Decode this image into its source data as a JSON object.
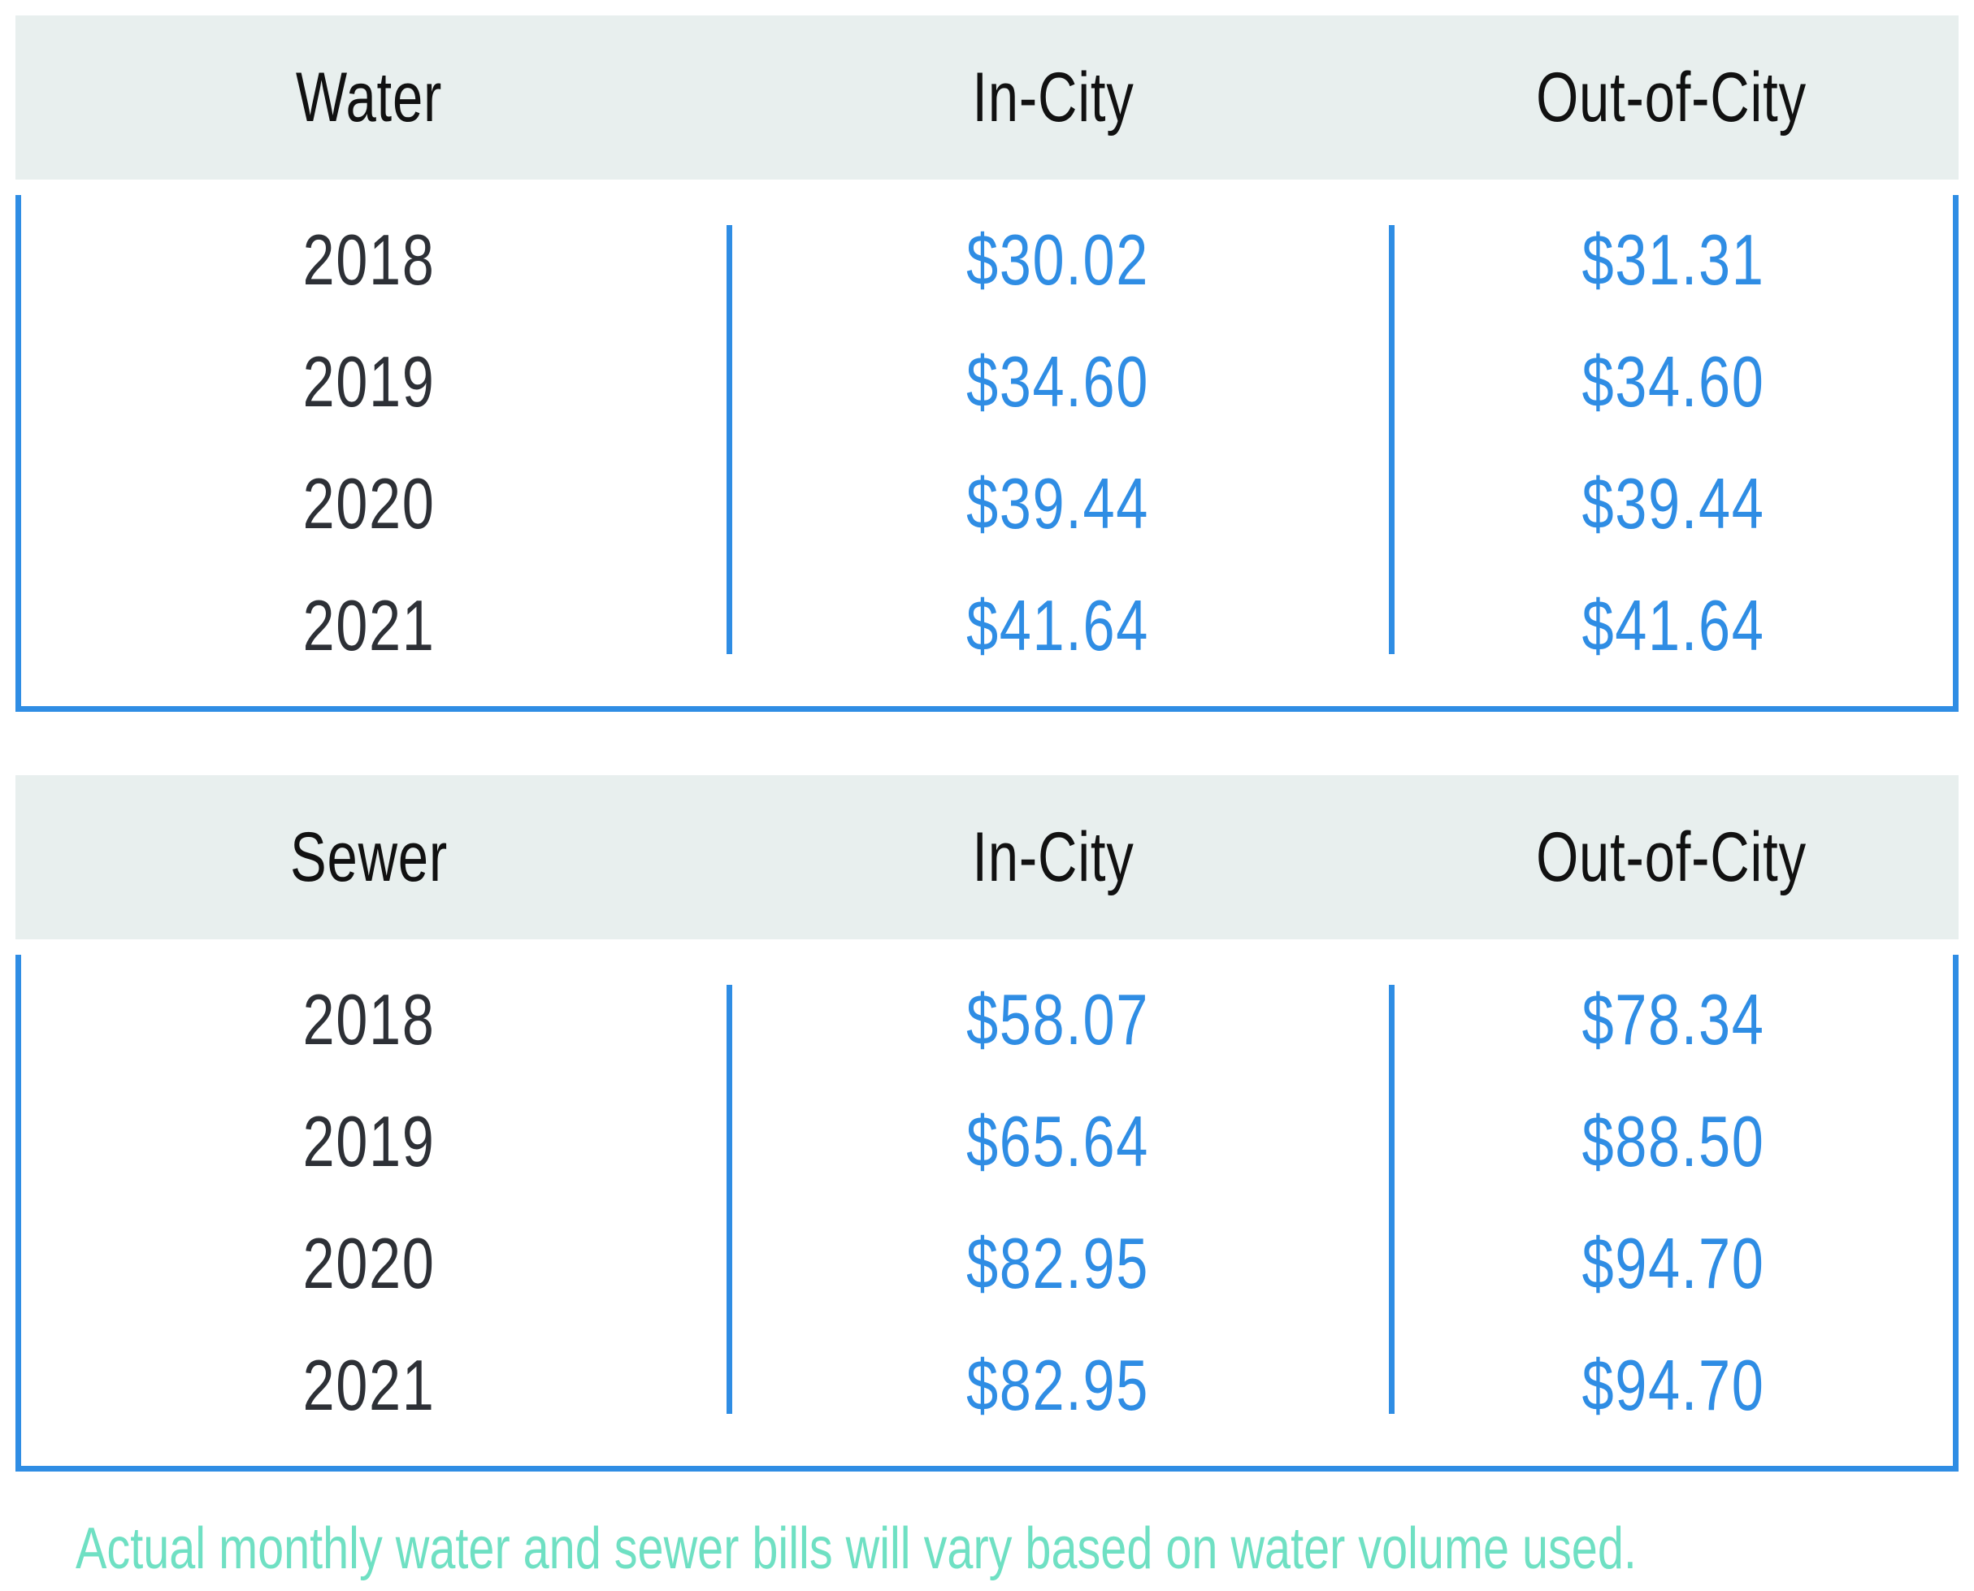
{
  "chart_data": [
    {
      "type": "table",
      "columns": [
        "Water",
        "In-City",
        "Out-of-City"
      ],
      "rows": [
        {
          "year": "2018",
          "in_city": "$30.02",
          "out_of_city": "$31.31"
        },
        {
          "year": "2019",
          "in_city": "$34.60",
          "out_of_city": "$34.60"
        },
        {
          "year": "2020",
          "in_city": "$39.44",
          "out_of_city": "$39.44"
        },
        {
          "year": "2021",
          "in_city": "$41.64",
          "out_of_city": "$41.64"
        }
      ]
    },
    {
      "type": "table",
      "columns": [
        "Sewer",
        "In-City",
        "Out-of-City"
      ],
      "rows": [
        {
          "year": "2018",
          "in_city": "$58.07",
          "out_of_city": "$78.34"
        },
        {
          "year": "2019",
          "in_city": "$65.64",
          "out_of_city": "$88.50"
        },
        {
          "year": "2020",
          "in_city": "$82.95",
          "out_of_city": "$94.70"
        },
        {
          "year": "2021",
          "in_city": "$82.95",
          "out_of_city": "$94.70"
        }
      ]
    }
  ],
  "note": "Actual monthly water and sewer bills will vary based on water volume used.",
  "colors": {
    "header_bg": "#e8efee",
    "accent_blue": "#2f8de4",
    "year_text": "#2d3036",
    "note_text": "#6fe0c3"
  }
}
